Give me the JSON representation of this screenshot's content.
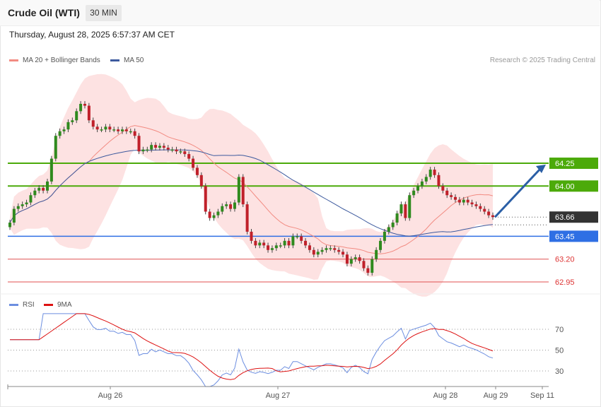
{
  "header": {
    "title": "Crude Oil (WTI)",
    "interval": "30 MIN"
  },
  "datetime": "Thursday, August 28, 2025 6:57:37 AM CET",
  "legend": {
    "ma20_label": "MA 20 + Bollinger Bands",
    "ma50_label": "MA 50",
    "rsi_label": "RSI",
    "rsi_ma_label": "9MA",
    "colors": {
      "ma20": "#f28b82",
      "ma50": "#3d5a9e",
      "rsi": "#6c8ee0",
      "rsi_ma": "#d11"
    }
  },
  "credit": "Research © 2025 Trading Central",
  "chart_data": {
    "type": "candlestick",
    "price_ylim": [
      62.8,
      64.75
    ],
    "levels": [
      {
        "value": 64.25,
        "label": "64.25",
        "kind": "resistance",
        "color": "#4caa0a"
      },
      {
        "value": 64.0,
        "label": "64.00",
        "kind": "resistance",
        "color": "#4caa0a"
      },
      {
        "value": 63.66,
        "label": "63.66",
        "kind": "current",
        "color": "#333333"
      },
      {
        "value": 63.45,
        "label": "63.45",
        "kind": "pivot",
        "color": "#2f6fe4"
      },
      {
        "value": 63.2,
        "label": "63.20",
        "kind": "support",
        "color": "#e05050"
      },
      {
        "value": 62.95,
        "label": "62.95",
        "kind": "support",
        "color": "#e05050"
      }
    ],
    "projection": {
      "from": 63.66,
      "to": 64.25
    },
    "x_ticks": [
      "Aug 26",
      "Aug 27",
      "Aug 28",
      "Aug 29",
      "Sep 11"
    ],
    "closes": [
      63.6,
      63.75,
      63.78,
      63.8,
      63.82,
      63.9,
      63.95,
      63.98,
      63.95,
      64.05,
      64.3,
      64.55,
      64.6,
      64.62,
      64.7,
      64.72,
      64.82,
      64.9,
      64.88,
      64.72,
      64.65,
      64.62,
      64.62,
      64.65,
      64.62,
      64.62,
      64.6,
      64.62,
      64.6,
      64.6,
      64.55,
      64.38,
      64.4,
      64.4,
      64.45,
      64.42,
      64.44,
      64.42,
      64.4,
      64.4,
      64.38,
      64.38,
      64.35,
      64.3,
      64.2,
      64.12,
      64.0,
      63.72,
      63.65,
      63.68,
      63.72,
      63.78,
      63.8,
      63.75,
      63.82,
      64.1,
      63.8,
      63.5,
      63.4,
      63.35,
      63.38,
      63.35,
      63.3,
      63.32,
      63.35,
      63.35,
      63.4,
      63.35,
      63.45,
      63.45,
      63.4,
      63.35,
      63.3,
      63.25,
      63.28,
      63.3,
      63.32,
      63.32,
      63.3,
      63.28,
      63.25,
      63.15,
      63.2,
      63.22,
      63.18,
      63.1,
      63.05,
      63.2,
      63.3,
      63.4,
      63.5,
      63.55,
      63.6,
      63.7,
      63.8,
      63.65,
      63.9,
      63.95,
      64.0,
      64.05,
      64.1,
      64.18,
      64.12,
      64.0,
      63.95,
      63.9,
      63.88,
      63.85,
      63.82,
      63.85,
      63.82,
      63.8,
      63.78,
      63.75,
      63.72,
      63.68,
      63.66
    ],
    "opens": [
      63.55,
      63.6,
      63.75,
      63.78,
      63.8,
      63.82,
      63.9,
      63.95,
      63.98,
      63.95,
      64.05,
      64.3,
      64.55,
      64.6,
      64.62,
      64.7,
      64.72,
      64.82,
      64.9,
      64.88,
      64.72,
      64.65,
      64.62,
      64.62,
      64.65,
      64.62,
      64.62,
      64.6,
      64.62,
      64.6,
      64.6,
      64.55,
      64.38,
      64.4,
      64.4,
      64.45,
      64.42,
      64.44,
      64.42,
      64.4,
      64.4,
      64.38,
      64.38,
      64.35,
      64.3,
      64.2,
      64.12,
      64.0,
      63.72,
      63.65,
      63.68,
      63.72,
      63.78,
      63.8,
      63.75,
      63.82,
      64.1,
      63.8,
      63.5,
      63.4,
      63.35,
      63.38,
      63.35,
      63.3,
      63.32,
      63.35,
      63.35,
      63.4,
      63.35,
      63.45,
      63.45,
      63.4,
      63.35,
      63.3,
      63.25,
      63.28,
      63.3,
      63.32,
      63.32,
      63.3,
      63.28,
      63.25,
      63.15,
      63.2,
      63.22,
      63.18,
      63.1,
      63.05,
      63.2,
      63.3,
      63.4,
      63.5,
      63.55,
      63.6,
      63.7,
      63.8,
      63.65,
      63.9,
      63.95,
      64.0,
      64.05,
      64.1,
      64.18,
      64.12,
      64.0,
      63.95,
      63.9,
      63.88,
      63.85,
      63.82,
      63.85,
      63.82,
      63.8,
      63.78,
      63.75,
      63.72,
      63.68
    ],
    "rsi_levels": [
      70,
      50,
      30
    ]
  }
}
